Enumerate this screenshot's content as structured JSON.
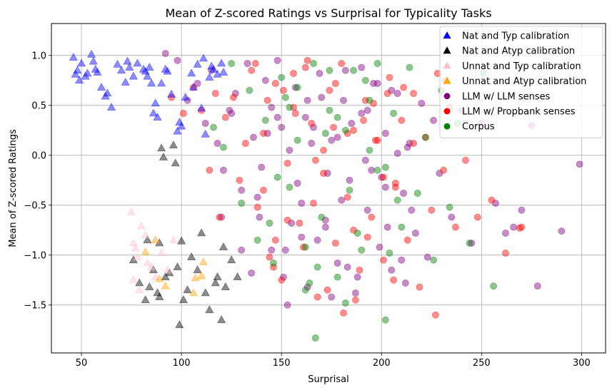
{
  "chart_data": {
    "type": "scatter",
    "title": "Mean of Z-scored Ratings vs Surprisal for Typicality Tasks",
    "xlabel": "Surprisal",
    "ylabel": "Mean of Z-scored Ratings",
    "xlim": [
      35,
      312
    ],
    "ylim": [
      -1.98,
      1.32
    ],
    "xticks": [
      50,
      100,
      150,
      200,
      250,
      300
    ],
    "xtick_labels": [
      "50",
      "100",
      "150",
      "200",
      "250",
      "300"
    ],
    "yticks": [
      -1.5,
      -1.0,
      -0.5,
      0.0,
      0.5,
      1.0
    ],
    "ytick_labels": [
      "−1.5",
      "−1.0",
      "−0.5",
      "0.0",
      "0.5",
      "1.0"
    ],
    "grid": true,
    "legend_position": "top-right",
    "series": [
      {
        "name": "Nat and Typ calibration",
        "color": "#0000ff",
        "marker": "triangle",
        "x": [
          46,
          48,
          50,
          53,
          55,
          57,
          60,
          62,
          65,
          68,
          70,
          72,
          74,
          78,
          81,
          82,
          83,
          85,
          86,
          88,
          90,
          92,
          95,
          99,
          102,
          105,
          108,
          110,
          112,
          114,
          116,
          118,
          120,
          47,
          52,
          56,
          63,
          73,
          84,
          93,
          98,
          106,
          111,
          115,
          121,
          49,
          58,
          76,
          87,
          100
        ],
        "y": [
          0.98,
          0.85,
          0.92,
          0.82,
          1.01,
          0.86,
          0.68,
          0.59,
          0.48,
          0.91,
          0.85,
          0.73,
          0.88,
          0.92,
          0.86,
          0.84,
          0.79,
          0.72,
          0.42,
          0.38,
          0.72,
          0.86,
          0.61,
          0.33,
          0.58,
          0.82,
          0.91,
          0.47,
          0.21,
          0.78,
          0.86,
          0.81,
          0.92,
          0.81,
          0.79,
          0.94,
          0.62,
          0.94,
          0.88,
          0.84,
          0.24,
          0.68,
          0.97,
          0.89,
          0.83,
          0.75,
          0.83,
          0.79,
          0.52,
          0.29
        ]
      },
      {
        "name": "Nat and Atyp calibration",
        "color": "#000000",
        "marker": "triangle",
        "x": [
          76,
          79,
          82,
          83,
          84,
          86,
          88,
          89,
          90,
          91,
          92,
          96,
          97,
          99,
          100,
          101,
          103,
          105,
          108,
          110,
          112,
          114,
          118,
          120,
          122,
          125,
          128,
          89,
          94,
          98,
          117,
          121
        ],
        "y": [
          -1.05,
          -1.28,
          -1.45,
          -0.85,
          -1.32,
          -1.15,
          -1.38,
          -1.42,
          0.07,
          -0.02,
          -1.22,
          0.1,
          -0.08,
          -1.7,
          -0.86,
          -1.45,
          -1.35,
          -1.02,
          -1.15,
          -0.78,
          -1.38,
          -1.55,
          -1.22,
          -1.65,
          -1.32,
          -1.05,
          -1.22,
          -0.88,
          -1.18,
          -1.12,
          -1.28,
          -0.92
        ]
      },
      {
        "name": "Unnat and Typ calibration",
        "color": "#ffc0cb",
        "marker": "triangle",
        "x": [
          75,
          76,
          77,
          78,
          80,
          82,
          85,
          87,
          90,
          93,
          96,
          76,
          79,
          83
        ],
        "y": [
          -0.57,
          -0.88,
          -0.93,
          -1.02,
          -0.71,
          -0.8,
          -1.12,
          -1.22,
          -0.98,
          -1.15,
          -0.85,
          -1.25,
          -1.35,
          -1.08
        ]
      },
      {
        "name": "Unnat and Atyp calibration",
        "color": "#ffa500",
        "marker": "triangle",
        "x": [
          82,
          87,
          89,
          92,
          106,
          110,
          111,
          107
        ],
        "y": [
          -0.97,
          -0.85,
          -1.24,
          -1.31,
          -1.38,
          -1.21,
          -1.07,
          -1.23
        ]
      },
      {
        "name": "LLM w/ LLM senses",
        "color": "#800080",
        "marker": "circle",
        "x": [
          92,
          98,
          103,
          108,
          112,
          115,
          118,
          121,
          124,
          127,
          130,
          133,
          136,
          139,
          142,
          145,
          148,
          151,
          154,
          157,
          160,
          163,
          166,
          169,
          172,
          175,
          178,
          181,
          184,
          187,
          190,
          193,
          196,
          199,
          202,
          205,
          208,
          211,
          214,
          217,
          220,
          223,
          226,
          229,
          232,
          235,
          240,
          245,
          250,
          257,
          262,
          266,
          270,
          275,
          290,
          299,
          278,
          140,
          150,
          160,
          170,
          180,
          190,
          200,
          210,
          145,
          155,
          165,
          175,
          185,
          195,
          205,
          215,
          138,
          148,
          158,
          168,
          178,
          188,
          198,
          208,
          135,
          152,
          162,
          172,
          182,
          192,
          202,
          212,
          143,
          153,
          163,
          173,
          183,
          193,
          203,
          213,
          120,
          130,
          125
        ],
        "y": [
          1.02,
          0.95,
          0.55,
          0.72,
          0.32,
          0.85,
          0.12,
          -0.15,
          0.45,
          0.62,
          -0.35,
          0.92,
          0.18,
          -0.62,
          0.75,
          -0.95,
          0.38,
          -1.22,
          0.05,
          0.68,
          -0.48,
          -1.32,
          0.28,
          0.82,
          -0.72,
          0.15,
          -1.08,
          0.55,
          -0.25,
          -1.38,
          0.42,
          -0.55,
          0.72,
          -0.92,
          0.22,
          -1.15,
          0.62,
          -0.38,
          0.12,
          -0.78,
          0.52,
          -1.02,
          0.35,
          -0.18,
          0.75,
          -0.62,
          0.45,
          -0.88,
          0.32,
          -0.48,
          -0.78,
          -0.72,
          -0.55,
          0.3,
          -0.76,
          -0.09,
          -1.31,
          -0.12,
          0.28,
          -0.82,
          0.58,
          -0.45,
          0.88,
          -0.22,
          -1.05,
          0.48,
          -0.68,
          0.12,
          -1.42,
          0.32,
          -0.15,
          0.65,
          -0.55,
          -0.42,
          0.95,
          -0.28,
          -0.85,
          0.18,
          -1.22,
          0.72,
          0.02,
          -1.18,
          -0.95,
          0.38,
          -0.65,
          0.85,
          -0.05,
          -0.32,
          -1.28,
          0.22,
          -1.5,
          0.55,
          -0.18,
          -1.12,
          0.45,
          -0.72,
          0.08,
          -0.62,
          -0.95,
          0.42
        ]
      },
      {
        "name": "LLM w/ Propbank senses",
        "color": "#ff0000",
        "marker": "circle",
        "x": [
          95,
          101,
          106,
          110,
          114,
          117,
          119,
          122,
          126,
          129,
          132,
          135,
          138,
          141,
          144,
          147,
          150,
          153,
          156,
          159,
          162,
          165,
          168,
          171,
          174,
          177,
          180,
          183,
          186,
          189,
          192,
          195,
          198,
          201,
          204,
          207,
          210,
          213,
          216,
          219,
          222,
          225,
          228,
          231,
          234,
          237,
          242,
          248,
          255,
          262,
          269,
          270,
          141,
          151,
          161,
          171,
          181,
          191,
          201,
          211,
          146,
          156,
          166,
          176,
          186,
          196,
          206,
          216,
          137,
          147,
          157,
          167,
          177,
          187,
          197,
          207,
          143,
          153,
          163,
          173,
          183,
          193,
          203,
          227
        ],
        "y": [
          0.58,
          0.42,
          0.68,
          0.45,
          -0.15,
          0.62,
          -0.62,
          0.38,
          0.58,
          -0.25,
          0.12,
          0.85,
          -0.52,
          0.22,
          -1.02,
          0.72,
          -1.25,
          -0.08,
          0.48,
          -0.68,
          0.88,
          0.32,
          -1.42,
          -0.18,
          0.65,
          -0.88,
          0.92,
          -0.42,
          0.25,
          -1.15,
          0.55,
          -0.62,
          0.15,
          -1.05,
          0.78,
          -0.28,
          0.35,
          -0.85,
          0.62,
          -1.32,
          0.18,
          -0.55,
          0.82,
          -0.15,
          0.48,
          -0.72,
          -0.05,
          -0.62,
          -0.45,
          -0.98,
          -0.73,
          -0.72,
          -0.35,
          0.65,
          -0.92,
          0.05,
          -1.58,
          0.35,
          -0.22,
          0.68,
          -1.12,
          0.82,
          -0.48,
          0.28,
          -0.75,
          0.52,
          -1.25,
          0.12,
          0.92,
          -0.85,
          0.42,
          -0.05,
          0.72,
          -1.45,
          0.15,
          -0.32,
          0.55,
          -0.65,
          0.95,
          -1.35,
          0.22,
          -0.82,
          0.62,
          -1.6
        ]
      },
      {
        "name": "Corpus",
        "color": "#008000",
        "marker": "circle",
        "x": [
          116,
          121,
          125,
          130,
          134,
          138,
          142,
          146,
          150,
          154,
          158,
          162,
          166,
          170,
          174,
          178,
          182,
          186,
          190,
          194,
          198,
          202,
          206,
          210,
          214,
          218,
          222,
          226,
          230,
          234,
          238,
          244,
          251,
          256,
          148,
          158,
          168,
          178,
          188,
          198,
          208,
          152,
          162,
          172,
          182,
          192,
          202,
          144,
          154,
          164,
          174,
          184,
          194,
          204,
          167
        ],
        "y": [
          0.28,
          0.08,
          0.92,
          -0.48,
          0.65,
          -0.85,
          0.35,
          -1.08,
          0.78,
          -0.32,
          0.15,
          -1.35,
          0.92,
          -0.62,
          0.45,
          -1.22,
          0.25,
          0.85,
          -0.95,
          0.55,
          -0.15,
          -1.65,
          0.42,
          -0.72,
          0.88,
          -0.38,
          0.18,
          -1.05,
          0.65,
          -0.52,
          0.32,
          -0.88,
          0.82,
          -1.31,
          -0.22,
          0.68,
          -1.12,
          0.38,
          -0.78,
          0.92,
          -0.45,
          0.58,
          -0.92,
          0.22,
          -1.48,
          0.75,
          -0.12,
          -0.68,
          0.48,
          -1.28,
          0.85,
          -0.35,
          0.05,
          -0.98,
          -1.83
        ]
      }
    ]
  }
}
